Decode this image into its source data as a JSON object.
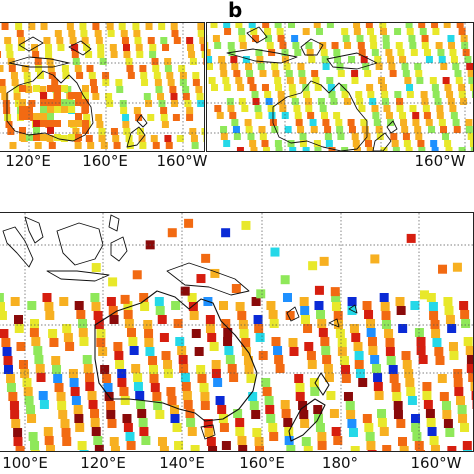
{
  "panel_b": {
    "letter": "b",
    "left_x_ticks": [
      "120°E",
      "160°E"
    ],
    "right_x_ticks": [
      "160°W"
    ]
  },
  "panel_top_left": {
    "x_ticks_partial": [
      "120°E",
      "160°E",
      "160°W"
    ]
  },
  "panel_bottom": {
    "x_ticks": [
      "100°E",
      "120°E",
      "140°E",
      "160°E",
      "180°",
      "160°W"
    ]
  },
  "colors": {
    "map_outline": "#111111",
    "grid_dotted": "#555555",
    "colormap": [
      "#0a2ad6",
      "#1e90ff",
      "#25d8e8",
      "#8fe85a",
      "#e8e82a",
      "#f7b021",
      "#f26a12",
      "#d61e0f",
      "#8a0a0a"
    ]
  }
}
